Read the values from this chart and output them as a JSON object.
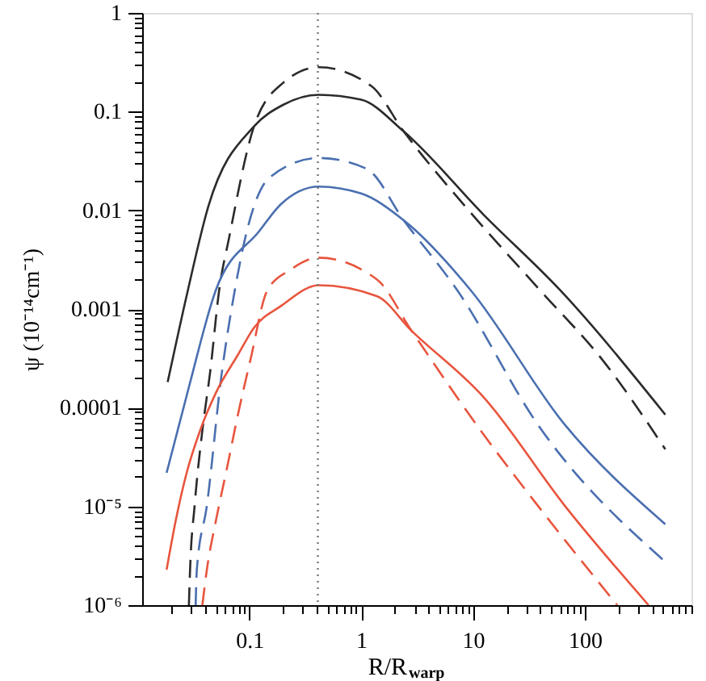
{
  "chart_data": {
    "type": "line",
    "xlabel": "R/R$_{warp}$",
    "ylabel": "ψ (10⁻¹⁴cm⁻¹)",
    "log": "xy",
    "grid": false,
    "xlim": [
      0.011,
      900
    ],
    "ylim": [
      1e-06,
      1
    ],
    "xticks": [
      {
        "value": 0.02,
        "label": null
      },
      {
        "value": 0.03,
        "label": null
      },
      {
        "value": 0.04,
        "label": null
      },
      {
        "value": 0.05,
        "label": null
      },
      {
        "value": 0.06,
        "label": null
      },
      {
        "value": 0.07,
        "label": null
      },
      {
        "value": 0.08,
        "label": null
      },
      {
        "value": 0.09,
        "label": null
      },
      0.1,
      {
        "value": 0.2,
        "label": null
      },
      {
        "value": 0.3,
        "label": null
      },
      {
        "value": 0.4,
        "label": null
      },
      {
        "value": 0.5,
        "label": null
      },
      {
        "value": 0.6,
        "label": null
      },
      {
        "value": 0.7,
        "label": null
      },
      {
        "value": 0.8,
        "label": null
      },
      {
        "value": 0.9,
        "label": null
      },
      1,
      {
        "value": 2,
        "label": null
      },
      {
        "value": 3,
        "label": null
      },
      {
        "value": 4,
        "label": null
      },
      {
        "value": 5,
        "label": null
      },
      {
        "value": 6,
        "label": null
      },
      {
        "value": 7,
        "label": null
      },
      {
        "value": 8,
        "label": null
      },
      {
        "value": 9,
        "label": null
      },
      10,
      {
        "value": 20,
        "label": null
      },
      {
        "value": 30,
        "label": null
      },
      {
        "value": 40,
        "label": null
      },
      {
        "value": 50,
        "label": null
      },
      {
        "value": 60,
        "label": null
      },
      {
        "value": 70,
        "label": null
      },
      {
        "value": 80,
        "label": null
      },
      {
        "value": 90,
        "label": null
      },
      100,
      {
        "value": 200,
        "label": null
      },
      {
        "value": 300,
        "label": null
      },
      {
        "value": 400,
        "label": null
      },
      {
        "value": 500,
        "label": null
      },
      {
        "value": 600,
        "label": null
      },
      {
        "value": 700,
        "label": null
      },
      {
        "value": 800,
        "label": null
      },
      {
        "value": 900,
        "label": null
      }
    ],
    "yticks": [
      {
        "value": 1e-06,
        "label": "10⁻⁶"
      },
      {
        "value": 2e-06,
        "label": null
      },
      {
        "value": 3e-06,
        "label": null
      },
      {
        "value": 4e-06,
        "label": null
      },
      {
        "value": 5e-06,
        "label": null
      },
      {
        "value": 6e-06,
        "label": null
      },
      {
        "value": 7e-06,
        "label": null
      },
      {
        "value": 8e-06,
        "label": null
      },
      {
        "value": 9e-06,
        "label": null
      },
      {
        "value": 1e-05,
        "label": "10⁻⁵"
      },
      {
        "value": 2e-05,
        "label": null
      },
      {
        "value": 3e-05,
        "label": null
      },
      {
        "value": 4e-05,
        "label": null
      },
      {
        "value": 5e-05,
        "label": null
      },
      {
        "value": 6e-05,
        "label": null
      },
      {
        "value": 7e-05,
        "label": null
      },
      {
        "value": 8e-05,
        "label": null
      },
      {
        "value": 9e-05,
        "label": null
      },
      0.0001,
      {
        "value": 0.0002,
        "label": null
      },
      {
        "value": 0.0003,
        "label": null
      },
      {
        "value": 0.0004,
        "label": null
      },
      {
        "value": 0.0005,
        "label": null
      },
      {
        "value": 0.0006,
        "label": null
      },
      {
        "value": 0.0007,
        "label": null
      },
      {
        "value": 0.0008,
        "label": null
      },
      {
        "value": 0.0009,
        "label": null
      },
      0.001,
      {
        "value": 0.002,
        "label": null
      },
      {
        "value": 0.003,
        "label": null
      },
      {
        "value": 0.004,
        "label": null
      },
      {
        "value": 0.005,
        "label": null
      },
      {
        "value": 0.006,
        "label": null
      },
      {
        "value": 0.007,
        "label": null
      },
      {
        "value": 0.008,
        "label": null
      },
      {
        "value": 0.009,
        "label": null
      },
      0.01,
      {
        "value": 0.02,
        "label": null
      },
      {
        "value": 0.03,
        "label": null
      },
      {
        "value": 0.04,
        "label": null
      },
      {
        "value": 0.05,
        "label": null
      },
      {
        "value": 0.06,
        "label": null
      },
      {
        "value": 0.07,
        "label": null
      },
      {
        "value": 0.08,
        "label": null
      },
      {
        "value": 0.09,
        "label": null
      },
      0.1,
      {
        "value": 0.2,
        "label": null
      },
      {
        "value": 0.3,
        "label": null
      },
      {
        "value": 0.4,
        "label": null
      },
      {
        "value": 0.5,
        "label": null
      },
      {
        "value": 0.6,
        "label": null
      },
      {
        "value": 0.7,
        "label": null
      },
      {
        "value": 0.8,
        "label": null
      },
      {
        "value": 0.9,
        "label": null
      },
      1
    ],
    "ref_lines": [
      {
        "axis": "x",
        "value": 0.41,
        "color": "#777777",
        "line_style": "dotted"
      }
    ],
    "series": [
      {
        "color": "#2b2b2b",
        "line_style": "solid",
        "x": [
          0.0186,
          0.0282,
          0.0427,
          0.11,
          0.2,
          0.417,
          1,
          2.4,
          12.6,
          60.3,
          525
        ],
        "values": [
          0.000182,
          0.00155,
          0.0107,
          0.0708,
          0.117,
          0.148,
          0.132,
          0.0631,
          0.00891,
          0.00155,
          8.51e-05
        ]
      },
      {
        "color": "#2b2b2b",
        "line_style": "dashed",
        "x": [
          0.0288,
          0.0295,
          0.0324,
          0.038,
          0.0447,
          0.0537,
          0.0661,
          0.11,
          0.2,
          0.417,
          1.23,
          2.4,
          10,
          39.8,
          145,
          525
        ],
        "values": [
          1e-06,
          2.29e-06,
          1.02e-05,
          5.89e-05,
          0.000234,
          0.00155,
          0.00537,
          0.0708,
          0.195,
          0.282,
          0.182,
          0.0631,
          0.00891,
          0.00155,
          0.000302,
          3.8e-05
        ]
      },
      {
        "color": "#4a6fb0",
        "line_style": "solid",
        "x": [
          0.0182,
          0.0288,
          0.0501,
          0.123,
          0.191,
          0.417,
          1,
          2.4,
          9.55,
          66.1,
          525
        ],
        "values": [
          2.19e-05,
          0.000162,
          0.00155,
          0.00617,
          0.0115,
          0.0174,
          0.0148,
          0.00794,
          0.00155,
          6.76e-05,
          6.61e-06
        ]
      },
      {
        "color": "#4a6fb0",
        "line_style": "dashed",
        "x": [
          0.0331,
          0.0339,
          0.0417,
          0.0562,
          0.0741,
          0.0955,
          0.151,
          0.417,
          1.12,
          2.4,
          7.24,
          38,
          525
        ],
        "values": [
          1e-06,
          2.29e-06,
          1.02e-05,
          0.000209,
          0.00155,
          0.00631,
          0.0214,
          0.0339,
          0.0263,
          0.00794,
          0.00155,
          6.76e-05,
          2.75e-06
        ]
      },
      {
        "color": "#e8553e",
        "line_style": "solid",
        "x": [
          0.0182,
          0.0219,
          0.0275,
          0.0363,
          0.0501,
          0.0794,
          0.11,
          0.191,
          0.417,
          1.38,
          2.82,
          12.6,
          66.1,
          372
        ],
        "values": [
          2.29e-06,
          7.08e-06,
          2.19e-05,
          5.89e-05,
          0.000141,
          0.000347,
          0.000646,
          0.00107,
          0.00174,
          0.00135,
          0.000603,
          0.000126,
          1.02e-05,
          1e-06
        ]
      },
      {
        "color": "#e8553e",
        "line_style": "dashed",
        "x": [
          0.038,
          0.0417,
          0.0501,
          0.0631,
          0.0794,
          0.102,
          0.145,
          0.234,
          0.417,
          1.38,
          2.82,
          12.6,
          38,
          195
        ],
        "values": [
          1e-06,
          2.29e-06,
          7.08e-06,
          2.45e-05,
          8.71e-05,
          0.000302,
          0.00155,
          0.00251,
          0.00331,
          0.002,
          0.000603,
          5.25e-05,
          1.02e-05,
          1e-06
        ]
      }
    ]
  }
}
